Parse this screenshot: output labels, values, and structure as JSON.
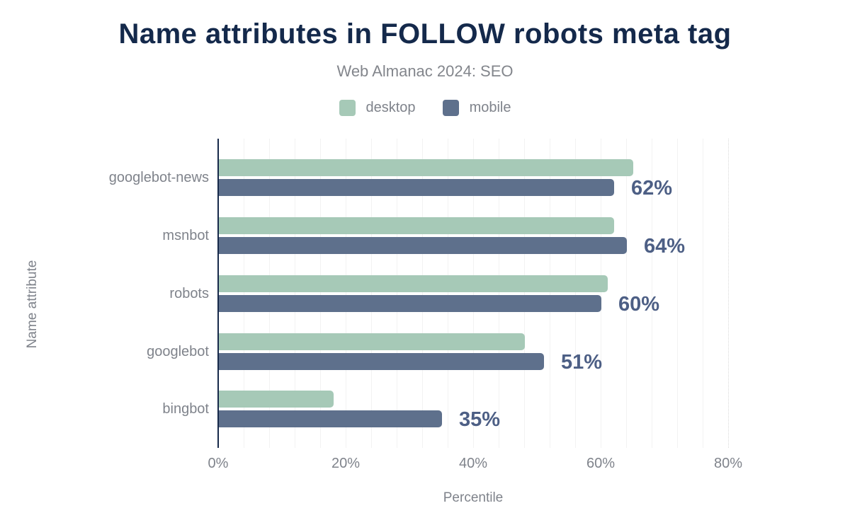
{
  "title": "Name attributes in FOLLOW robots meta tag",
  "subtitle": "Web Almanac 2024: SEO",
  "legend": {
    "items": [
      {
        "label": "desktop",
        "color": "#a6c9b7"
      },
      {
        "label": "mobile",
        "color": "#5e708c"
      }
    ]
  },
  "chart_data": {
    "type": "bar",
    "orientation": "horizontal",
    "title": "Name attributes in FOLLOW robots meta tag",
    "subtitle": "Web Almanac 2024: SEO",
    "categories": [
      "googlebot-news",
      "msnbot",
      "robots",
      "googlebot",
      "bingbot"
    ],
    "series": [
      {
        "name": "desktop",
        "color": "#a6c9b7",
        "values": [
          65,
          62,
          61,
          48,
          18
        ]
      },
      {
        "name": "mobile",
        "color": "#5e708c",
        "values": [
          62,
          64,
          60,
          51,
          35
        ]
      }
    ],
    "data_labels": [
      "62%",
      "64%",
      "60%",
      "51%",
      "35%"
    ],
    "data_labels_series": "mobile",
    "xlabel": "Percentile",
    "ylabel": "Name attribute",
    "x_ticks": [
      {
        "value": 0,
        "label": "0%"
      },
      {
        "value": 20,
        "label": "20%"
      },
      {
        "value": 40,
        "label": "40%"
      },
      {
        "value": 60,
        "label": "60%"
      },
      {
        "value": 80,
        "label": "80%"
      }
    ],
    "xlim": [
      0,
      80
    ],
    "grid": {
      "minor_step_pct": 4,
      "vertical_only": true
    },
    "legend_position": "top"
  },
  "colors": {
    "background": "#ffffff",
    "title": "#14294b",
    "subtitle": "#83868c",
    "text_muted": "#7f838b",
    "data_label": "#4d5f85",
    "axis_line": "#17294a",
    "gridline": "#f2f2f2",
    "gridline_end": "#d9d9d9"
  }
}
